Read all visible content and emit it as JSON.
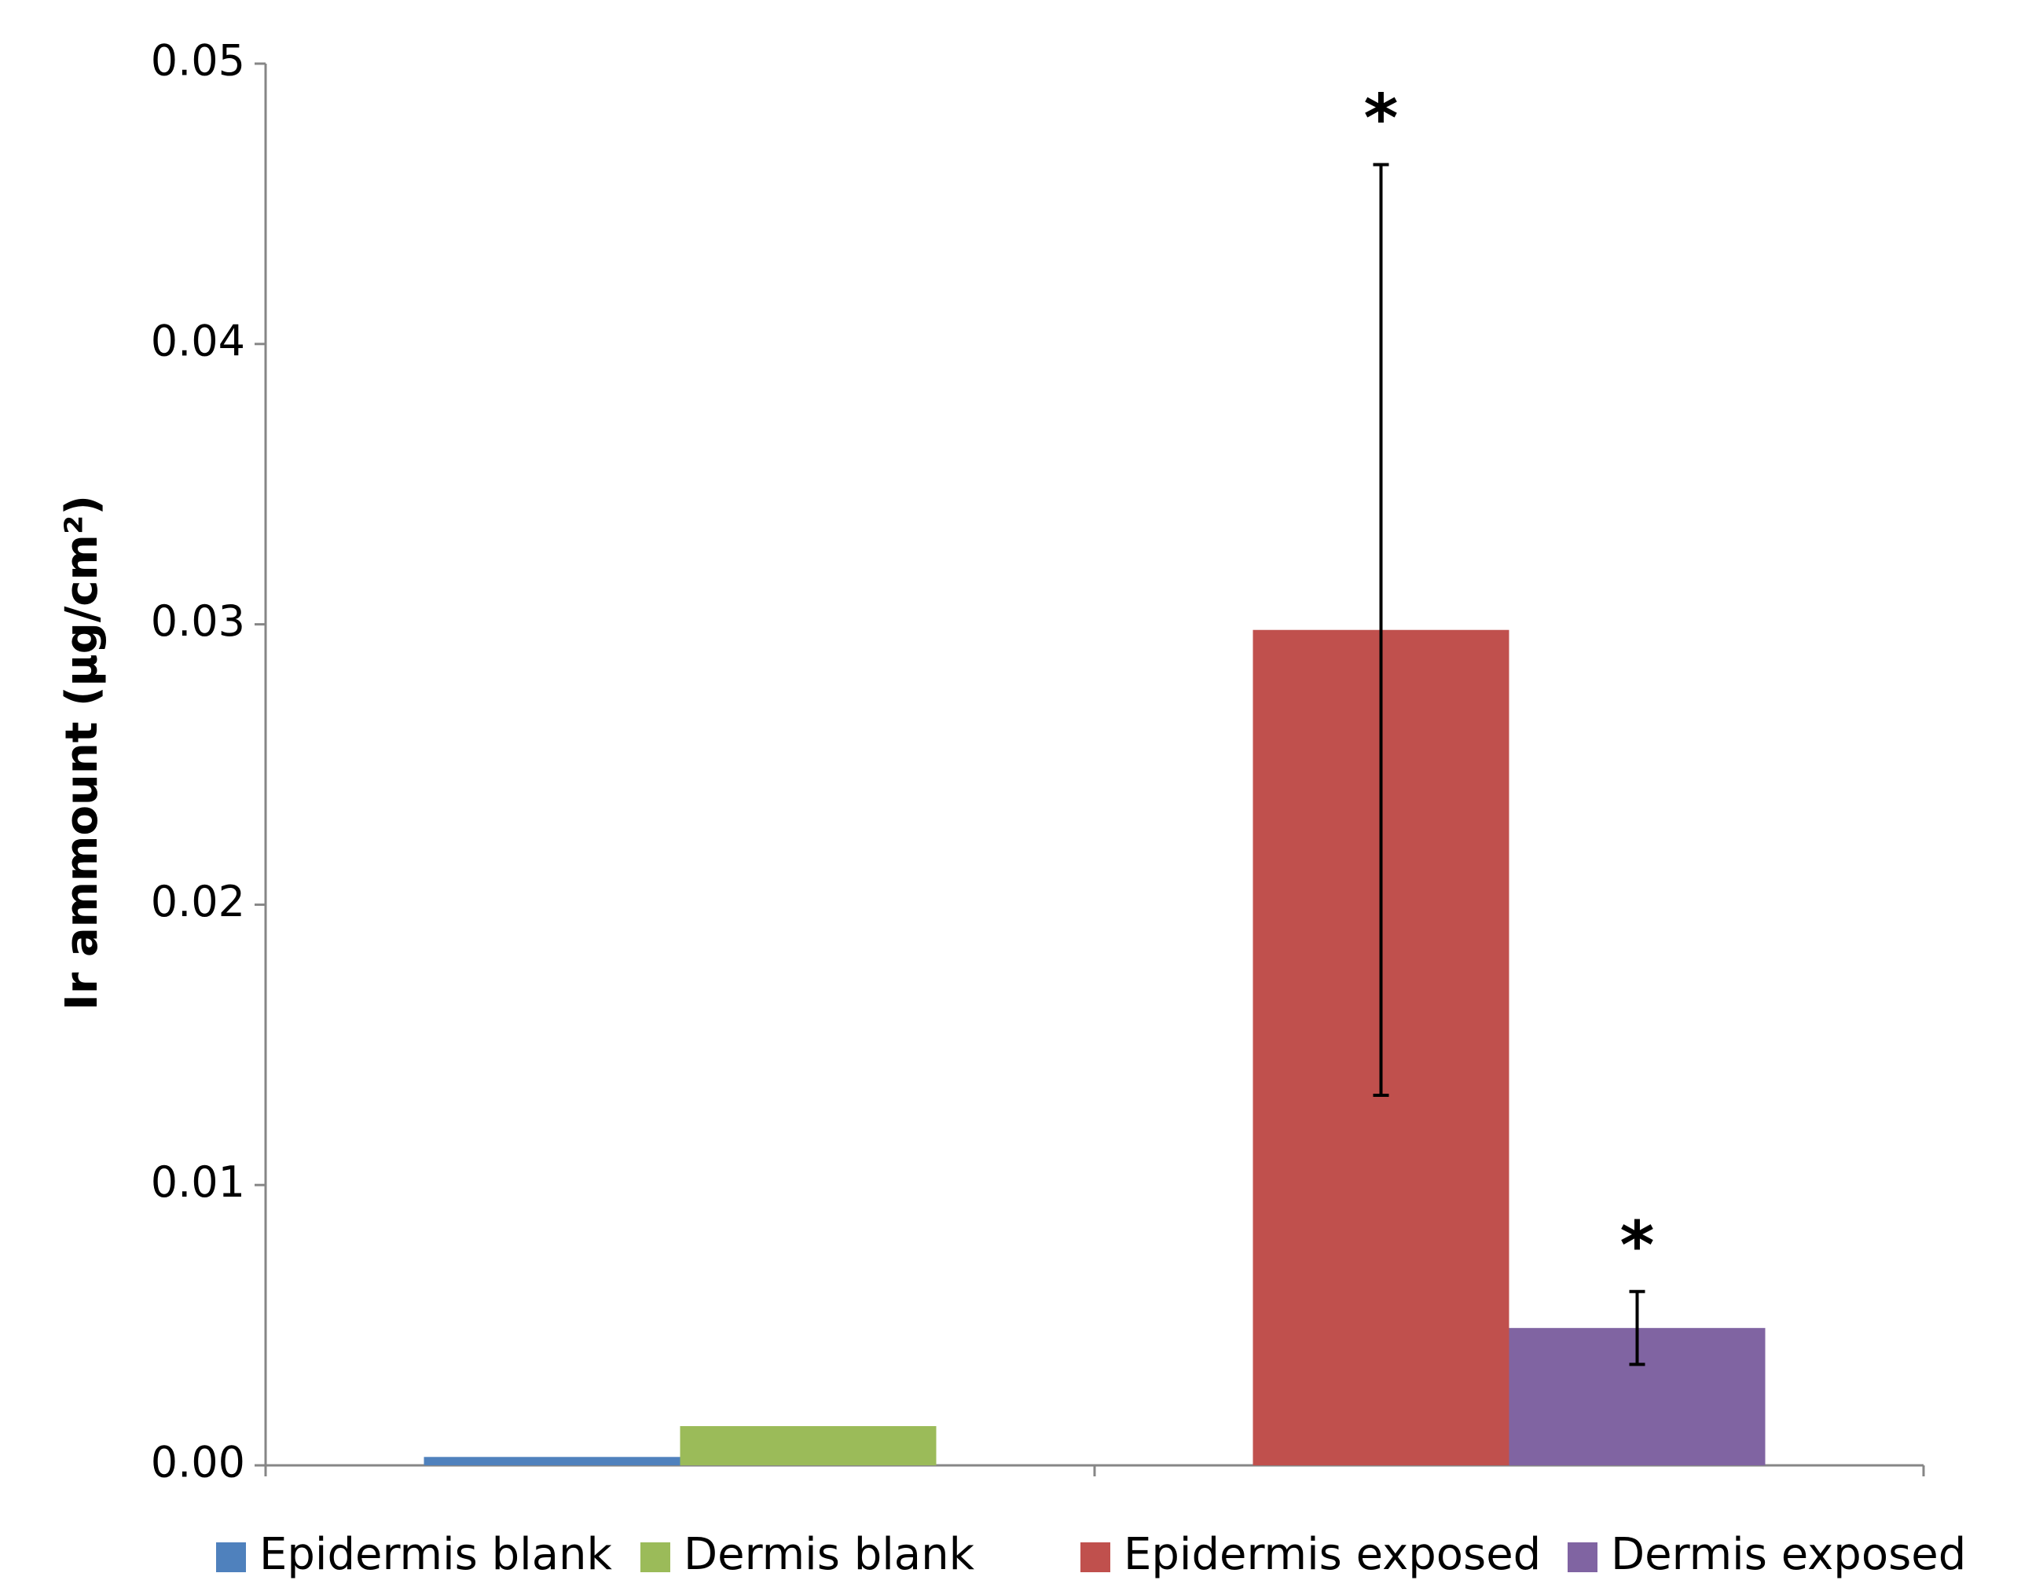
{
  "chart_data": {
    "type": "bar",
    "ylabel": "Ir ammount (µg/cm²)",
    "ylim": [
      0,
      0.05
    ],
    "yticks": [
      "0.00",
      "0.01",
      "0.02",
      "0.03",
      "0.04",
      "0.05"
    ],
    "grid": false,
    "legend_position": "bottom",
    "groups": [
      {
        "bars": [
          {
            "name": "Epidermis blank",
            "value": 0.0003,
            "color": "#4F81BD"
          },
          {
            "name": "Dermis blank",
            "value": 0.0014,
            "color": "#9BBB59"
          }
        ]
      },
      {
        "bars": [
          {
            "name": "Epidermis exposed",
            "value": 0.0298,
            "error_low": 0.0132,
            "error_high": 0.0464,
            "annotation": "*",
            "color": "#C0504D"
          },
          {
            "name": "Dermis exposed",
            "value": 0.0049,
            "error_low": 0.0036,
            "error_high": 0.0062,
            "annotation": "*",
            "color": "#8064A2"
          }
        ]
      }
    ],
    "legend": [
      {
        "label": "Epidermis blank",
        "color": "#4F81BD"
      },
      {
        "label": "Dermis blank",
        "color": "#9BBB59"
      },
      {
        "label": "Epidermis exposed",
        "color": "#C0504D"
      },
      {
        "label": "Dermis exposed",
        "color": "#8064A2"
      }
    ]
  }
}
